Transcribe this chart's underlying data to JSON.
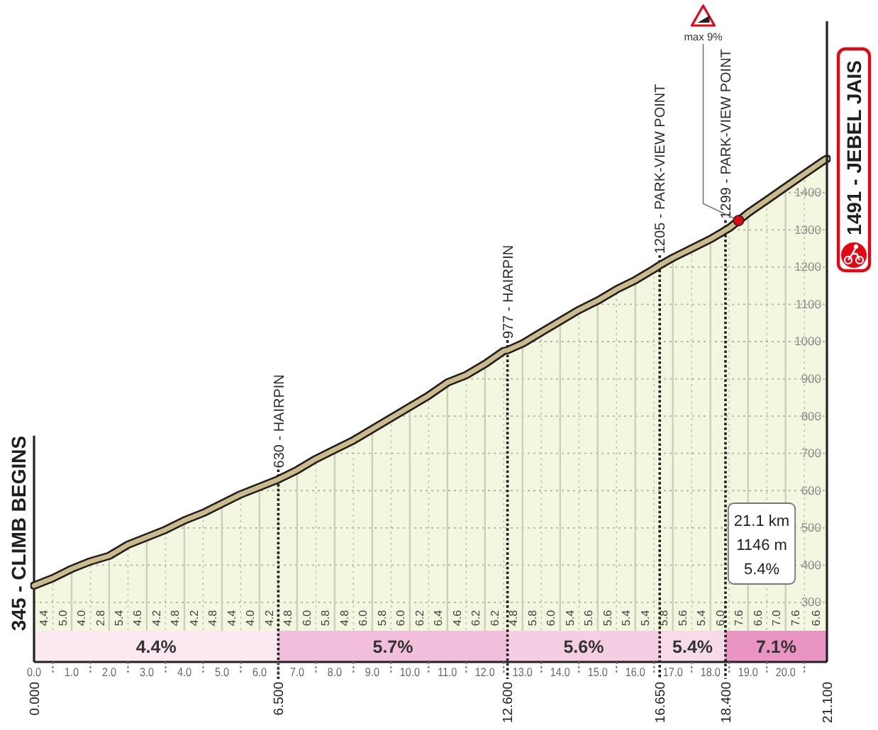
{
  "chart_data": {
    "type": "area",
    "x": [
      0,
      0.5,
      1,
      1.5,
      2,
      2.5,
      3,
      3.5,
      4,
      4.5,
      5,
      5.5,
      6,
      6.5,
      7,
      7.5,
      8,
      8.5,
      9,
      9.5,
      10,
      10.5,
      11,
      11.5,
      12,
      12.5,
      12.6,
      13,
      13.5,
      14,
      14.5,
      15,
      15.5,
      16,
      16.5,
      16.65,
      17,
      17.5,
      18,
      18.4,
      18.5,
      19,
      19.5,
      20,
      20.5,
      21,
      21.1
    ],
    "values": [
      345,
      365,
      390,
      410,
      425,
      455,
      475,
      495,
      520,
      540,
      565,
      590,
      610,
      630,
      655,
      685,
      710,
      735,
      765,
      795,
      825,
      855,
      890,
      910,
      940,
      975,
      977,
      995,
      1025,
      1055,
      1085,
      1110,
      1140,
      1165,
      1195,
      1205,
      1225,
      1250,
      1275,
      1299,
      1305,
      1345,
      1380,
      1415,
      1450,
      1485,
      1491
    ],
    "color": "#f4f7df",
    "xlim": [
      0,
      21.1
    ],
    "ylim": [
      140,
      1860
    ],
    "xticks": [
      {
        "value": 0,
        "label": "0.0"
      },
      {
        "value": 0.5,
        "label": null
      },
      {
        "value": 1,
        "label": "1.0"
      },
      {
        "value": 1.5,
        "label": null
      },
      {
        "value": 2,
        "label": "2.0"
      },
      {
        "value": 2.5,
        "label": null
      },
      {
        "value": 3,
        "label": "3.0"
      },
      {
        "value": 3.5,
        "label": null
      },
      {
        "value": 4,
        "label": "4.0"
      },
      {
        "value": 4.5,
        "label": null
      },
      {
        "value": 5,
        "label": "5.0"
      },
      {
        "value": 5.5,
        "label": null
      },
      {
        "value": 6,
        "label": "6.0"
      },
      {
        "value": 6.5,
        "label": null
      },
      {
        "value": 7,
        "label": "7.0"
      },
      {
        "value": 7.5,
        "label": null
      },
      {
        "value": 8,
        "label": "8.0"
      },
      {
        "value": 8.5,
        "label": null
      },
      {
        "value": 9,
        "label": "9.0"
      },
      {
        "value": 9.5,
        "label": null
      },
      {
        "value": 10,
        "label": "10.0"
      },
      {
        "value": 10.5,
        "label": null
      },
      {
        "value": 11,
        "label": "11.0"
      },
      {
        "value": 11.5,
        "label": null
      },
      {
        "value": 12,
        "label": "12.0"
      },
      {
        "value": 12.5,
        "label": null
      },
      {
        "value": 13,
        "label": "13.0"
      },
      {
        "value": 13.5,
        "label": null
      },
      {
        "value": 14,
        "label": "14.0"
      },
      {
        "value": 14.5,
        "label": null
      },
      {
        "value": 15,
        "label": "15.0"
      },
      {
        "value": 15.5,
        "label": null
      },
      {
        "value": 16,
        "label": "16.0"
      },
      {
        "value": 16.5,
        "label": null
      },
      {
        "value": 17,
        "label": "17.0"
      },
      {
        "value": 17.5,
        "label": null
      },
      {
        "value": 18,
        "label": "18.0"
      },
      {
        "value": 18.5,
        "label": null
      },
      {
        "value": 19,
        "label": "19.0"
      },
      {
        "value": 19.5,
        "label": null
      },
      {
        "value": 20,
        "label": "20.0"
      },
      {
        "value": 20.5,
        "label": null
      }
    ],
    "x2lim": [
      0,
      21.1
    ],
    "x2ticks": [
      {
        "value": 0,
        "label": "0.000"
      },
      {
        "value": 6.5,
        "label": "6.500"
      },
      {
        "value": 12.6,
        "label": "12.600"
      },
      {
        "value": 16.65,
        "label": "16.650"
      },
      {
        "value": 18.4,
        "label": "18.400"
      },
      {
        "value": 21.1,
        "label": "21.100"
      }
    ],
    "yticks": [
      300,
      400,
      500,
      600,
      700,
      800,
      900,
      1000,
      1100,
      1200,
      1300,
      1400
    ],
    "grid": true,
    "ref_lines": [
      {
        "axis": "x",
        "value": 0,
        "line_style": "solid",
        "color": "#222222"
      },
      {
        "axis": "x",
        "value": 6.5,
        "line_style": "dotted",
        "color": "#222222"
      },
      {
        "axis": "x",
        "value": 12.6,
        "line_style": "dotted",
        "color": "#222222"
      },
      {
        "axis": "x",
        "value": 16.65,
        "line_style": "dotted",
        "color": "#222222"
      },
      {
        "axis": "x",
        "value": 18.4,
        "line_style": "dotted",
        "color": "#222222"
      }
    ],
    "bands": [
      {
        "axis": "x",
        "from": 0,
        "to": 6.5,
        "label": "4.4%",
        "color": "#fbe8f1"
      },
      {
        "axis": "x",
        "from": 6.5,
        "to": 12.6,
        "label": "5.7%",
        "color": "#f1bfdb"
      },
      {
        "axis": "x",
        "from": 12.6,
        "to": 16.65,
        "label": "5.6%",
        "color": "#f5cee3"
      },
      {
        "axis": "x",
        "from": 16.65,
        "to": 18.4,
        "label": "5.4%",
        "color": "#f8dbe9"
      },
      {
        "axis": "x",
        "from": 18.4,
        "to": 21.1,
        "label": "7.1%",
        "color": "#e994c3"
      }
    ],
    "annotations": [
      {
        "text": "345 - CLIMB BEGINS",
        "x": 0,
        "y": 345
      },
      {
        "text": "630 - HAIRPIN",
        "x": 6.5,
        "y": 630
      },
      {
        "text": "977 - HAIRPIN",
        "x": 12.6,
        "y": 977
      },
      {
        "text": "1205 - PARK-VIEW POINT",
        "x": 16.65,
        "y": 1205
      },
      {
        "text": "1299 - PARK-VIEW POINT",
        "x": 18.4,
        "y": 1299
      },
      {
        "text": "max 9%",
        "x": 18.75,
        "y": 1325
      },
      {
        "text": "1491 - JEBEL JAIS",
        "x": 21.1,
        "y": 1491
      },
      "21.1 km",
      "1146 m",
      "5.4%",
      "4.4",
      "5.0",
      "4.0",
      "2.8",
      "5.4",
      "4.6",
      "4.2",
      "4.8",
      "4.2",
      "4.8",
      "4.4",
      "4.0",
      "4.2",
      "4.8",
      "6.0",
      "5.8",
      "4.8",
      "6.0",
      "5.8",
      "6.0",
      "6.2",
      "6.4",
      "4.6",
      "6.2",
      "6.2",
      "4.8",
      "5.8",
      "6.0",
      "5.4",
      "5.6",
      "5.6",
      "5.4",
      "5.4",
      "5.8",
      "5.6",
      "5.4",
      "6.0",
      "7.6",
      "6.6",
      "7.0",
      "7.6",
      "6.6"
    ]
  }
}
